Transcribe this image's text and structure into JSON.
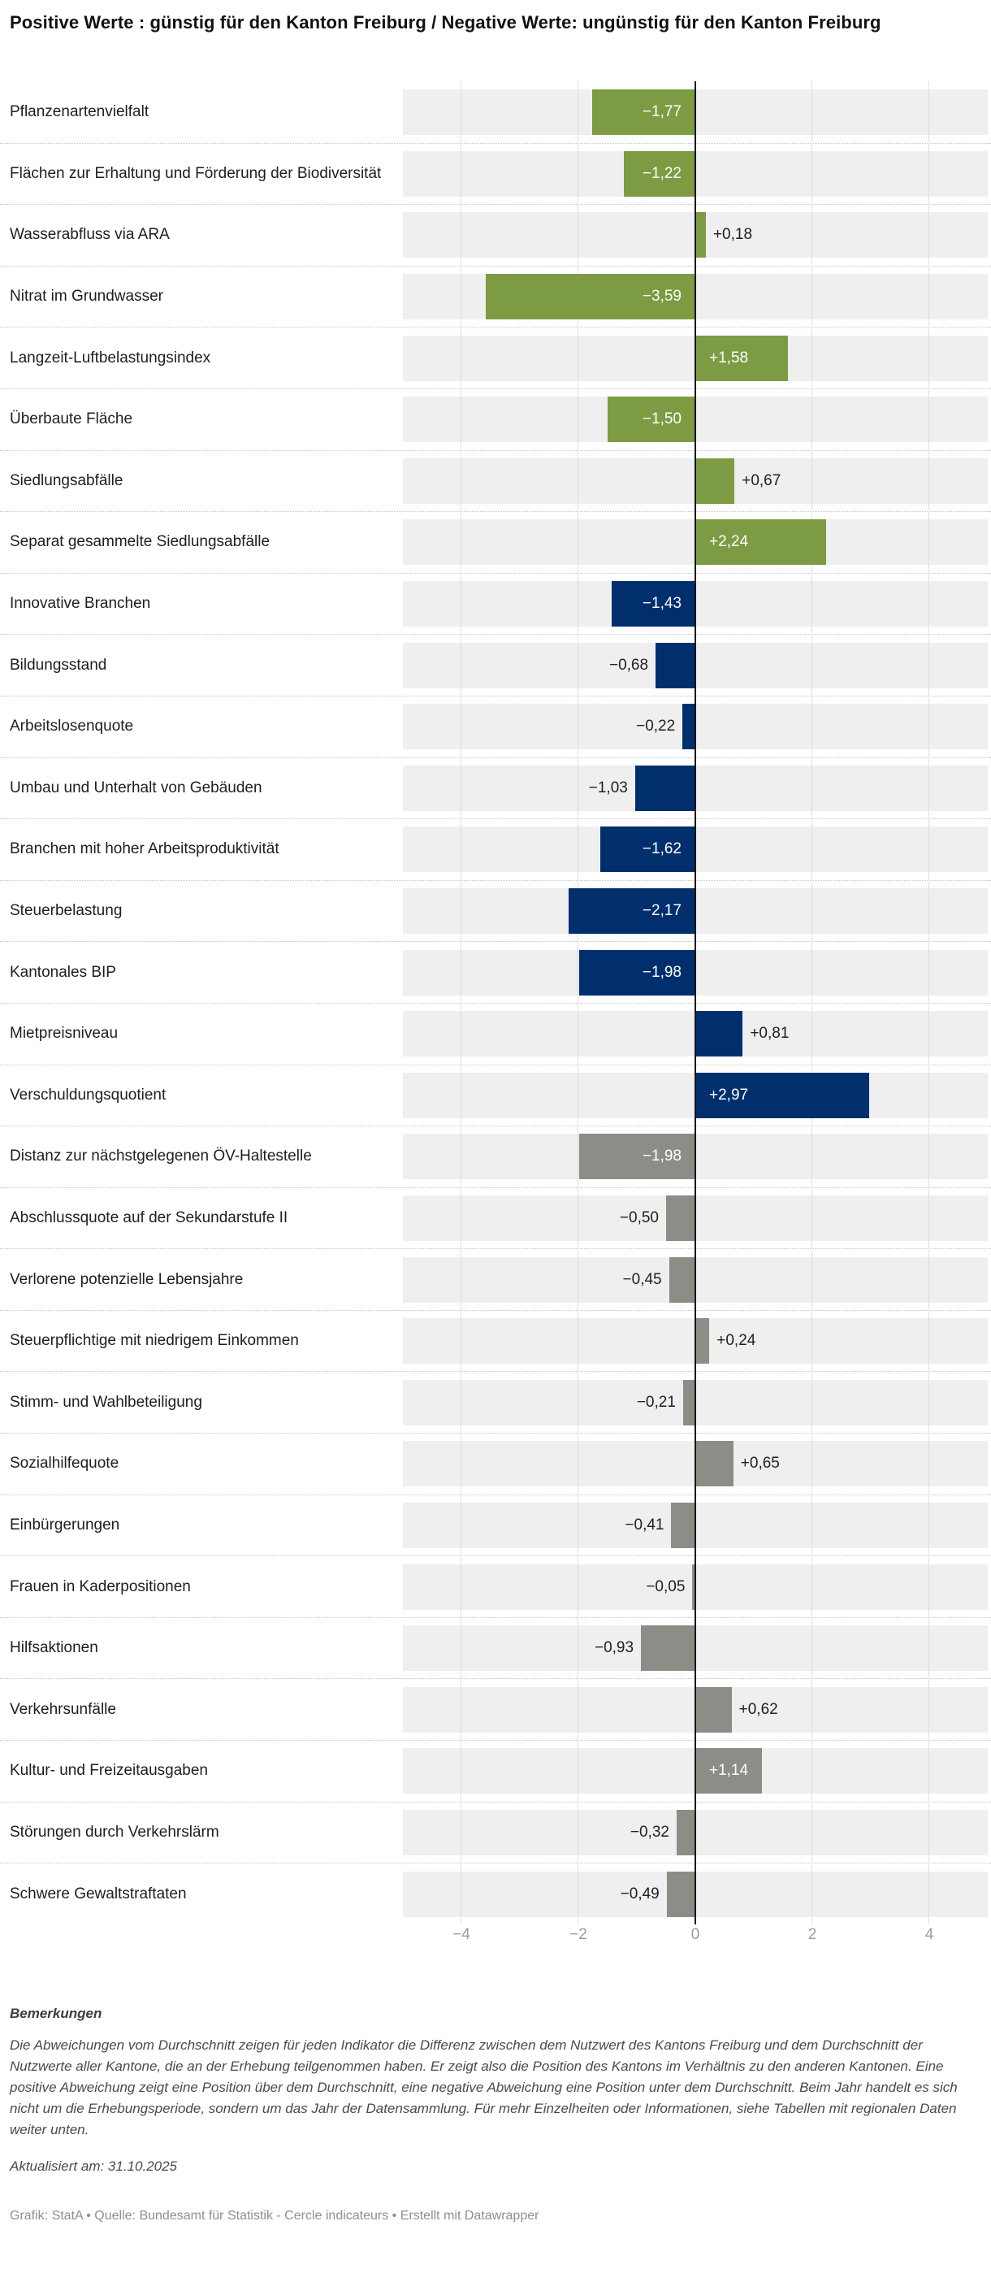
{
  "title": "Positive Werte : günstig für den Kanton Freiburg / Negative Werte: ungünstig für den Kanton Freiburg",
  "chart_data": {
    "type": "bar",
    "orientation": "horizontal",
    "xlim": [
      -5,
      5
    ],
    "grid": true,
    "zero_value": 0,
    "ticks": [
      {
        "value": -4,
        "label": "−4"
      },
      {
        "value": -2,
        "label": "−2"
      },
      {
        "value": 0,
        "label": "0"
      },
      {
        "value": 2,
        "label": "2"
      },
      {
        "value": 4,
        "label": "4"
      }
    ],
    "colors": {
      "umwelt": "#7d9b42",
      "wirtschaft": "#012f6e",
      "gesellschaft": "#8d8d88"
    },
    "track_color": "#efefef",
    "items": [
      {
        "label": "Pflanzenartenvielfalt",
        "value": -1.77,
        "display": "−1,77",
        "group": "umwelt"
      },
      {
        "label": "Flächen zur Erhaltung und Förderung der Biodiversität",
        "value": -1.22,
        "display": "−1,22",
        "group": "umwelt"
      },
      {
        "label": "Wasserabfluss via ARA",
        "value": 0.18,
        "display": "+0,18",
        "group": "umwelt"
      },
      {
        "label": "Nitrat im Grundwasser",
        "value": -3.59,
        "display": "−3,59",
        "group": "umwelt"
      },
      {
        "label": "Langzeit-Luftbelastungsindex",
        "value": 1.58,
        "display": "+1,58",
        "group": "umwelt"
      },
      {
        "label": "Überbaute Fläche",
        "value": -1.5,
        "display": "−1,50",
        "group": "umwelt"
      },
      {
        "label": "Siedlungsabfälle",
        "value": 0.67,
        "display": "+0,67",
        "group": "umwelt"
      },
      {
        "label": "Separat gesammelte Siedlungsabfälle",
        "value": 2.24,
        "display": "+2,24",
        "group": "umwelt"
      },
      {
        "label": "Innovative Branchen",
        "value": -1.43,
        "display": "−1,43",
        "group": "wirtschaft"
      },
      {
        "label": "Bildungsstand",
        "value": -0.68,
        "display": "−0,68",
        "group": "wirtschaft"
      },
      {
        "label": "Arbeitslosenquote",
        "value": -0.22,
        "display": "−0,22",
        "group": "wirtschaft"
      },
      {
        "label": "Umbau und Unterhalt von Gebäuden",
        "value": -1.03,
        "display": "−1,03",
        "group": "wirtschaft"
      },
      {
        "label": "Branchen mit hoher Arbeitsproduktivität",
        "value": -1.62,
        "display": "−1,62",
        "group": "wirtschaft"
      },
      {
        "label": "Steuerbelastung",
        "value": -2.17,
        "display": "−2,17",
        "group": "wirtschaft"
      },
      {
        "label": "Kantonales BIP",
        "value": -1.98,
        "display": "−1,98",
        "group": "wirtschaft"
      },
      {
        "label": "Mietpreisniveau",
        "value": 0.81,
        "display": "+0,81",
        "group": "wirtschaft"
      },
      {
        "label": "Verschuldungsquotient",
        "value": 2.97,
        "display": "+2,97",
        "group": "wirtschaft"
      },
      {
        "label": "Distanz zur nächstgelegenen ÖV-Haltestelle",
        "value": -1.98,
        "display": "−1,98",
        "group": "gesellschaft"
      },
      {
        "label": "Abschlussquote auf der Sekundarstufe II",
        "value": -0.5,
        "display": "−0,50",
        "group": "gesellschaft"
      },
      {
        "label": "Verlorene potenzielle Lebensjahre",
        "value": -0.45,
        "display": "−0,45",
        "group": "gesellschaft"
      },
      {
        "label": "Steuerpflichtige mit niedrigem Einkommen",
        "value": 0.24,
        "display": "+0,24",
        "group": "gesellschaft"
      },
      {
        "label": "Stimm- und Wahlbeteiligung",
        "value": -0.21,
        "display": "−0,21",
        "group": "gesellschaft"
      },
      {
        "label": "Sozialhilfequote",
        "value": 0.65,
        "display": "+0,65",
        "group": "gesellschaft"
      },
      {
        "label": "Einbürgerungen",
        "value": -0.41,
        "display": "−0,41",
        "group": "gesellschaft"
      },
      {
        "label": "Frauen in Kaderpositionen",
        "value": -0.05,
        "display": "−0,05",
        "group": "gesellschaft"
      },
      {
        "label": "Hilfsaktionen",
        "value": -0.93,
        "display": "−0,93",
        "group": "gesellschaft"
      },
      {
        "label": "Verkehrsunfälle",
        "value": 0.62,
        "display": "+0,62",
        "group": "gesellschaft"
      },
      {
        "label": "Kultur- und Freizeitausgaben",
        "value": 1.14,
        "display": "+1,14",
        "group": "gesellschaft"
      },
      {
        "label": "Störungen durch Verkehrslärm",
        "value": -0.32,
        "display": "−0,32",
        "group": "gesellschaft"
      },
      {
        "label": "Schwere Gewaltstraftaten",
        "value": -0.49,
        "display": "−0,49",
        "group": "gesellschaft"
      }
    ]
  },
  "footer": {
    "heading": "Bemerkungen",
    "paragraph": "Die Abweichungen vom Durchschnitt zeigen für jeden Indikator die Differenz zwischen dem Nutzwert des Kantons Freiburg und dem Durchschnitt der Nutzwerte aller Kantone, die an der Erhebung teilgenommen haben. Er zeigt also die Position des Kantons im Verhältnis zu den anderen Kantonen. Eine positive Abweichung zeigt eine Position über dem Durchschnitt, eine negative Abweichung eine Position unter dem Durchschnitt. Beim Jahr handelt es sich nicht um die Erhebungsperiode, sondern um das Jahr der Datensammlung. Für mehr Einzelheiten oder Informationen, siehe Tabellen mit regionalen Daten weiter unten.",
    "updated": "Aktualisiert am: 31.10.2025",
    "credits": "Grafik: StatA • Quelle: Bundesamt für Statistik - Cercle indicateurs • Erstellt mit Datawrapper"
  }
}
